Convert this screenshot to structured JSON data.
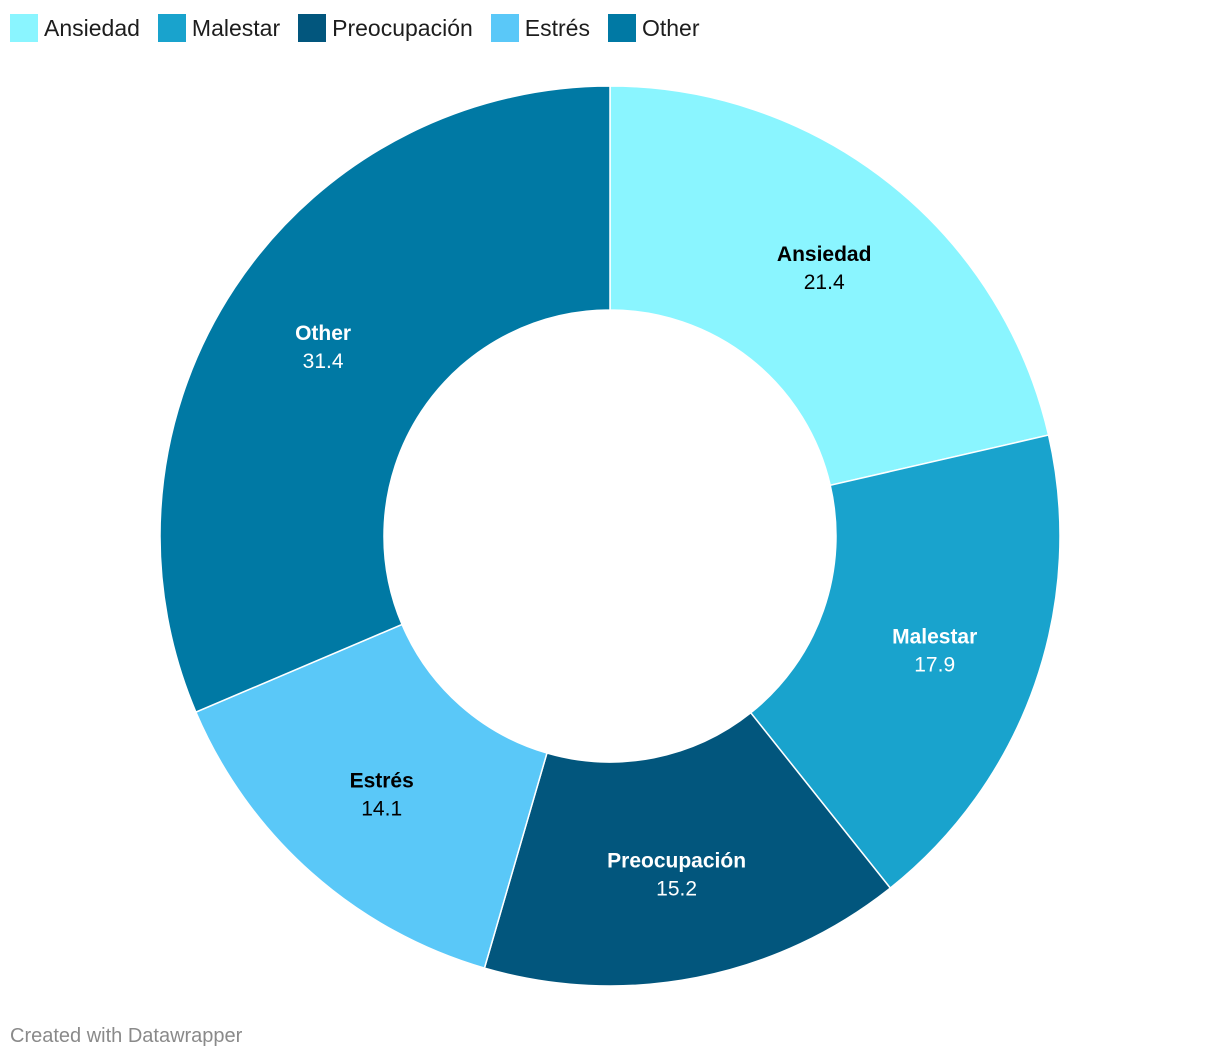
{
  "chart_data": {
    "type": "pie",
    "donut": true,
    "legend_position": "top-left",
    "slices": [
      {
        "label": "Ansiedad",
        "value": 21.4,
        "color": "#8af5ff",
        "label_color": "#000000"
      },
      {
        "label": "Malestar",
        "value": 17.9,
        "color": "#19a3cd",
        "label_color": "#ffffff"
      },
      {
        "label": "Preocupación",
        "value": 15.2,
        "color": "#02567d",
        "label_color": "#ffffff"
      },
      {
        "label": "Estrés",
        "value": 14.1,
        "color": "#5ac8f8",
        "label_color": "#000000"
      },
      {
        "label": "Other",
        "value": 31.4,
        "color": "#0079a4",
        "label_color": "#ffffff"
      }
    ]
  },
  "footer": {
    "credit": "Created with Datawrapper"
  }
}
